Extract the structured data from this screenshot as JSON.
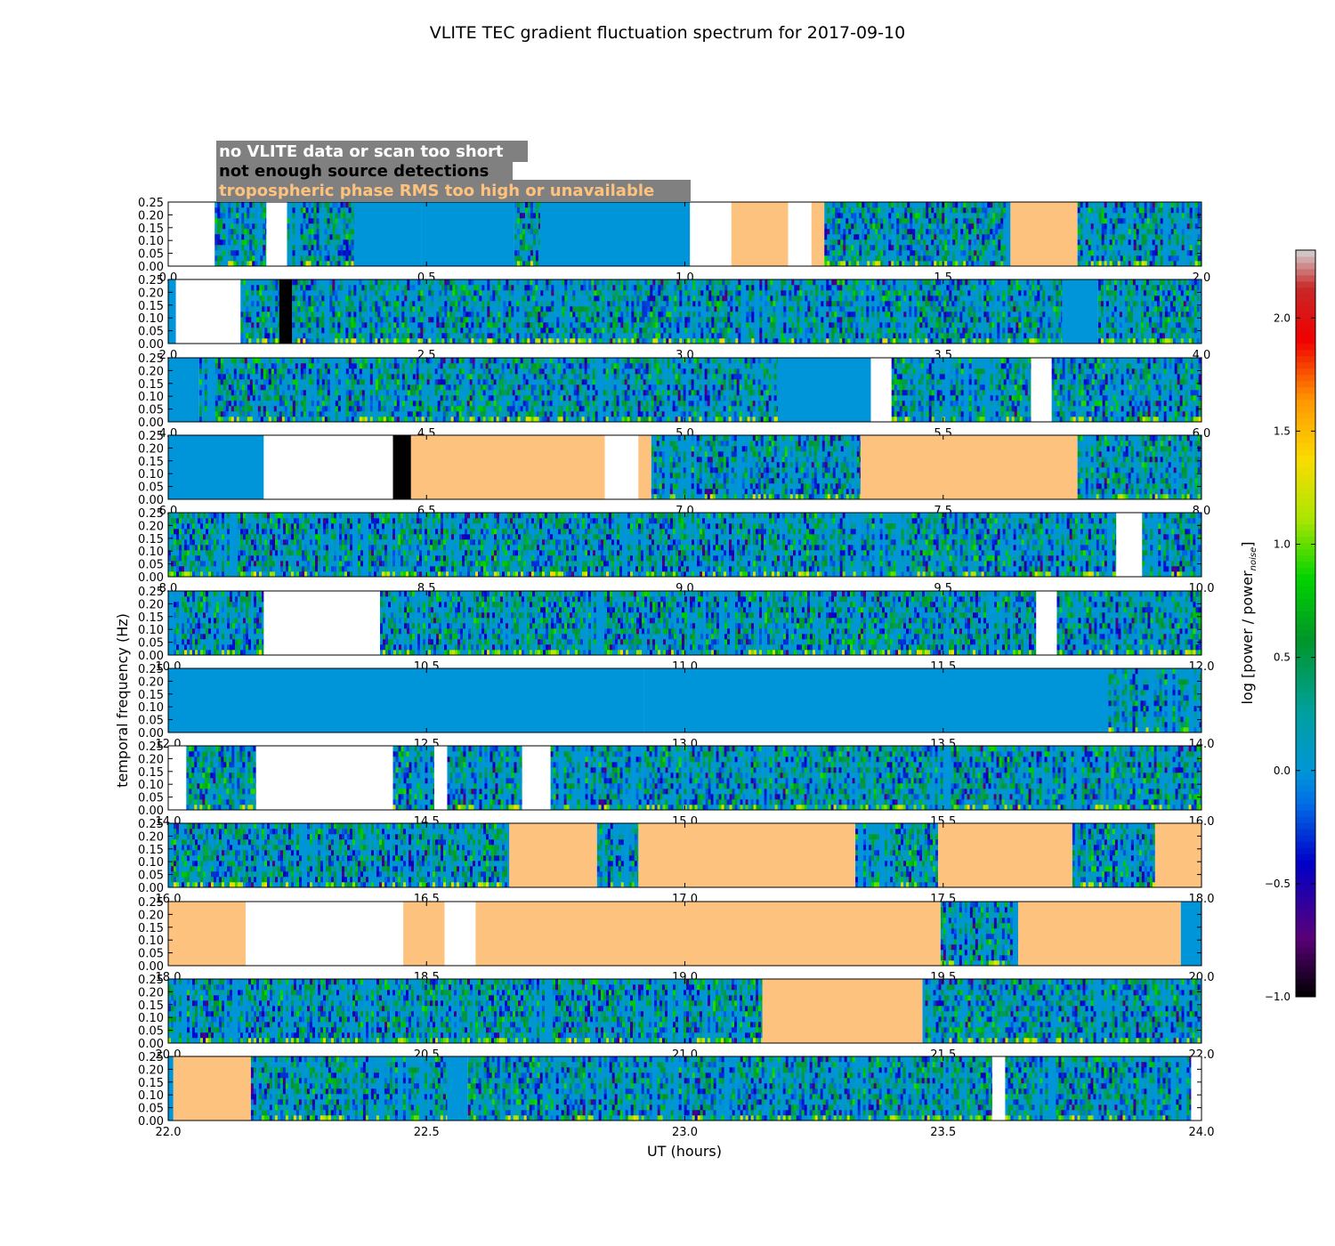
{
  "chart_data": {
    "type": "heatmap",
    "title": "VLITE TEC gradient fluctuation spectrum for 2017-09-10",
    "xlabel": "UT (hours)",
    "ylabel": "temporal frequency (Hz)",
    "ylim": [
      0,
      0.25
    ],
    "y_ticks": [
      "0.00",
      "0.05",
      "0.10",
      "0.15",
      "0.20",
      "0.25"
    ],
    "legend": {
      "position": "top-left",
      "items": [
        {
          "label": "no VLITE data or scan too short",
          "status": "nodata",
          "text_color": "#ffffff"
        },
        {
          "label": "not enough source detections",
          "status": "nodet",
          "text_color": "#000000"
        },
        {
          "label": "tropospheric phase RMS too high or unavailable",
          "status": "trop",
          "text_color": "#fdc27e"
        }
      ]
    },
    "colors": {
      "nodata": "#ffffff",
      "nodet": "#000000",
      "trop": "#fdc27e",
      "flat": "#0094d8",
      "legend_box": "#808080"
    },
    "colorbar": {
      "label": "log [power / power",
      "label_sub": "noise",
      "label_end": "]",
      "range": [
        -1.0,
        2.3
      ],
      "ticks": [
        "−1.0",
        "−0.5",
        "0.0",
        "0.5",
        "1.0",
        "1.5",
        "2.0"
      ],
      "tick_values": [
        -1.0,
        -0.5,
        0.0,
        0.5,
        1.0,
        1.5,
        2.0
      ]
    },
    "panels": [
      {
        "xlim": [
          0,
          2
        ],
        "x_ticks": [
          "0.0",
          "0.5",
          "1.0",
          "1.5",
          "2.0"
        ],
        "segments": [
          [
            0,
            0.09,
            "nodata"
          ],
          [
            0.09,
            0.19,
            "data"
          ],
          [
            0.19,
            0.23,
            "nodata"
          ],
          [
            0.23,
            0.36,
            "data"
          ],
          [
            0.36,
            0.49,
            "flat"
          ],
          [
            0.49,
            0.67,
            "flat"
          ],
          [
            0.67,
            0.72,
            "data"
          ],
          [
            0.72,
            1.01,
            "flat"
          ],
          [
            1.01,
            1.09,
            "nodata"
          ],
          [
            1.09,
            1.2,
            "trop"
          ],
          [
            1.2,
            1.245,
            "nodata"
          ],
          [
            1.245,
            1.27,
            "trop"
          ],
          [
            1.27,
            1.63,
            "data"
          ],
          [
            1.63,
            1.76,
            "trop"
          ],
          [
            1.76,
            2.0,
            "data"
          ]
        ]
      },
      {
        "xlim": [
          2,
          4
        ],
        "x_ticks": [
          "2.0",
          "2.5",
          "3.0",
          "3.5",
          "4.0"
        ],
        "segments": [
          [
            2.0,
            2.015,
            "flat"
          ],
          [
            2.015,
            2.14,
            "nodata"
          ],
          [
            2.14,
            2.215,
            "data"
          ],
          [
            2.215,
            2.24,
            "nodet"
          ],
          [
            2.24,
            3.73,
            "data"
          ],
          [
            3.73,
            3.8,
            "flat"
          ],
          [
            3.8,
            3.96,
            "data"
          ],
          [
            3.96,
            4.0,
            "data"
          ]
        ]
      },
      {
        "xlim": [
          4,
          6
        ],
        "x_ticks": [
          "4.0",
          "4.5",
          "5.0",
          "5.5",
          "6.0"
        ],
        "segments": [
          [
            4.0,
            4.06,
            "flat"
          ],
          [
            4.06,
            4.48,
            "data"
          ],
          [
            4.48,
            5.18,
            "data"
          ],
          [
            5.18,
            5.36,
            "flat"
          ],
          [
            5.36,
            5.4,
            "nodata"
          ],
          [
            5.4,
            5.67,
            "data"
          ],
          [
            5.67,
            5.71,
            "nodata"
          ],
          [
            5.71,
            6.0,
            "data"
          ]
        ]
      },
      {
        "xlim": [
          6,
          8
        ],
        "x_ticks": [
          "6.0",
          "6.5",
          "7.0",
          "7.5",
          "8.0"
        ],
        "segments": [
          [
            6.0,
            6.185,
            "flat"
          ],
          [
            6.185,
            6.435,
            "nodata"
          ],
          [
            6.435,
            6.47,
            "nodet"
          ],
          [
            6.47,
            6.845,
            "trop"
          ],
          [
            6.845,
            6.91,
            "nodata"
          ],
          [
            6.91,
            6.935,
            "trop"
          ],
          [
            6.935,
            7.34,
            "data"
          ],
          [
            7.34,
            7.76,
            "trop"
          ],
          [
            7.76,
            8.0,
            "data"
          ]
        ]
      },
      {
        "xlim": [
          8,
          10
        ],
        "x_ticks": [
          "8.0",
          "8.5",
          "9.0",
          "9.5",
          "10.0"
        ],
        "segments": [
          [
            8.0,
            9.26,
            "data"
          ],
          [
            9.26,
            9.3,
            "data"
          ],
          [
            9.3,
            9.75,
            "data"
          ],
          [
            9.75,
            9.835,
            "data"
          ],
          [
            9.835,
            9.885,
            "nodata"
          ],
          [
            9.885,
            10.0,
            "data"
          ]
        ]
      },
      {
        "xlim": [
          10,
          12
        ],
        "x_ticks": [
          "10.0",
          "10.5",
          "11.0",
          "11.5",
          "12.0"
        ],
        "segments": [
          [
            10.0,
            10.185,
            "data"
          ],
          [
            10.185,
            10.41,
            "nodata"
          ],
          [
            10.41,
            11.68,
            "data"
          ],
          [
            11.68,
            11.72,
            "nodata"
          ],
          [
            11.72,
            12.0,
            "data"
          ]
        ]
      },
      {
        "xlim": [
          12,
          14
        ],
        "x_ticks": [
          "12.0",
          "12.5",
          "13.0",
          "13.5",
          "14.0"
        ],
        "segments": [
          [
            12.0,
            12.92,
            "flat"
          ],
          [
            12.92,
            13.82,
            "flat"
          ],
          [
            13.82,
            14.0,
            "data"
          ]
        ]
      },
      {
        "xlim": [
          14,
          16
        ],
        "x_ticks": [
          "14.0",
          "14.5",
          "15.0",
          "15.5",
          "16.0"
        ],
        "segments": [
          [
            14.0,
            14.035,
            "nodata"
          ],
          [
            14.035,
            14.17,
            "data"
          ],
          [
            14.17,
            14.435,
            "nodata"
          ],
          [
            14.435,
            14.515,
            "data"
          ],
          [
            14.515,
            14.54,
            "nodata"
          ],
          [
            14.54,
            14.685,
            "data"
          ],
          [
            14.685,
            14.74,
            "nodata"
          ],
          [
            14.74,
            16.0,
            "data"
          ]
        ]
      },
      {
        "xlim": [
          16,
          18
        ],
        "x_ticks": [
          "16.0",
          "16.5",
          "17.0",
          "17.5",
          "18.0"
        ],
        "segments": [
          [
            16.0,
            16.66,
            "data"
          ],
          [
            16.66,
            16.83,
            "trop"
          ],
          [
            16.83,
            16.91,
            "data"
          ],
          [
            16.91,
            17.33,
            "trop"
          ],
          [
            17.33,
            17.49,
            "data"
          ],
          [
            17.49,
            17.75,
            "trop"
          ],
          [
            17.75,
            17.91,
            "data"
          ],
          [
            17.91,
            18.0,
            "trop"
          ]
        ]
      },
      {
        "xlim": [
          18,
          20
        ],
        "x_ticks": [
          "18.0",
          "18.5",
          "19.0",
          "19.5",
          "20.0"
        ],
        "segments": [
          [
            18.0,
            18.15,
            "trop"
          ],
          [
            18.15,
            18.455,
            "nodata"
          ],
          [
            18.455,
            18.535,
            "trop"
          ],
          [
            18.535,
            18.595,
            "nodata"
          ],
          [
            18.595,
            19.495,
            "trop"
          ],
          [
            19.495,
            19.645,
            "data"
          ],
          [
            19.645,
            19.96,
            "trop"
          ],
          [
            19.96,
            20.0,
            "flat"
          ]
        ]
      },
      {
        "xlim": [
          20,
          22
        ],
        "x_ticks": [
          "20.0",
          "20.5",
          "21.0",
          "21.5",
          "22.0"
        ],
        "segments": [
          [
            20.0,
            21.15,
            "data"
          ],
          [
            21.15,
            21.46,
            "trop"
          ],
          [
            21.46,
            22.0,
            "data"
          ]
        ]
      },
      {
        "xlim": [
          22,
          24
        ],
        "x_ticks": [
          "22.0",
          "22.5",
          "23.0",
          "23.5",
          "24.0"
        ],
        "segments": [
          [
            22.0,
            22.01,
            "flat"
          ],
          [
            22.01,
            22.16,
            "trop"
          ],
          [
            22.16,
            22.54,
            "data"
          ],
          [
            22.54,
            22.58,
            "flat"
          ],
          [
            22.58,
            23.595,
            "data"
          ],
          [
            23.595,
            23.62,
            "nodata"
          ],
          [
            23.62,
            23.98,
            "data"
          ],
          [
            23.98,
            24.0,
            "nodata"
          ]
        ]
      }
    ]
  }
}
